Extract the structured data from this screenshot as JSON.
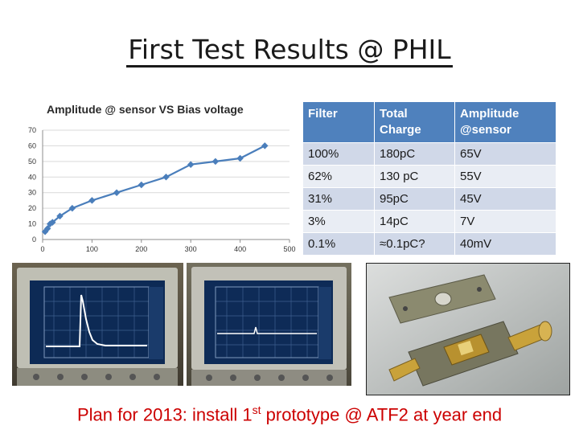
{
  "title": "First Test Results @ PHIL",
  "chart_data": {
    "type": "line",
    "title": "Amplitude @ sensor  VS Bias voltage",
    "xlabel": "",
    "ylabel": "",
    "xlim": [
      0,
      500
    ],
    "ylim": [
      0,
      70
    ],
    "x_ticks": [
      "0",
      "100",
      "200",
      "300",
      "400",
      "500"
    ],
    "y_ticks": [
      "0",
      "10",
      "20",
      "30",
      "40",
      "50",
      "60",
      "70"
    ],
    "grid": "horizontal",
    "series": [
      {
        "x": [
          5,
          10,
          15,
          20,
          35,
          60,
          100,
          150,
          200,
          250,
          300,
          350,
          400,
          450
        ],
        "y": [
          5,
          7,
          10,
          11,
          15,
          20,
          25,
          30,
          35,
          40,
          48,
          50,
          52,
          60
        ],
        "color": "#4a7ebb"
      }
    ]
  },
  "table": {
    "headers": [
      "Filter",
      "Total Charge",
      "Amplitude @sensor"
    ],
    "header_lines": [
      [
        "Filter"
      ],
      [
        "Total",
        "Charge"
      ],
      [
        "Amplitude",
        "@sensor"
      ]
    ],
    "rows": [
      [
        "100%",
        "180pC",
        "65V"
      ],
      [
        "62%",
        "130 pC",
        "55V"
      ],
      [
        "31%",
        "95pC",
        "45V"
      ],
      [
        "3%",
        "14pC",
        "7V"
      ],
      [
        "0.1%",
        "≈0.1pC?",
        "40mV"
      ]
    ],
    "header_color": "#4f81bd"
  },
  "footer": {
    "before": "Plan for 2013: install 1",
    "sup": "st",
    "after": " prototype @ ATF2 at year end",
    "color": "#cc0000"
  }
}
